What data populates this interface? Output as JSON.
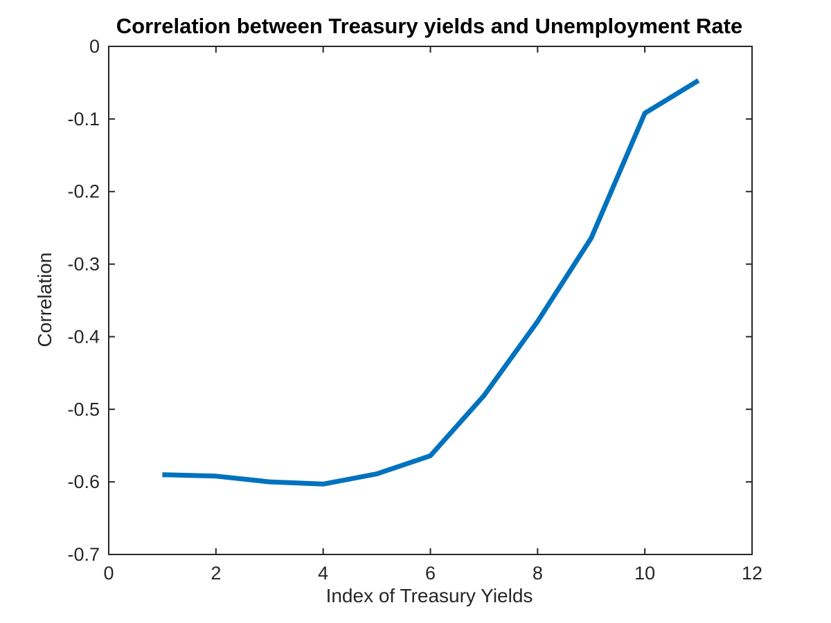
{
  "chart_data": {
    "type": "line",
    "title": "Correlation between Treasury yields and Unemployment Rate",
    "xlabel": "Index of Treasury Yields",
    "ylabel": "Correlation",
    "xlim": [
      0,
      12
    ],
    "ylim": [
      -0.7,
      0
    ],
    "xticks": [
      0,
      2,
      4,
      6,
      8,
      10,
      12
    ],
    "xtick_labels": [
      "0",
      "2",
      "4",
      "6",
      "8",
      "10",
      "12"
    ],
    "yticks": [
      0,
      -0.1,
      -0.2,
      -0.3,
      -0.4,
      -0.5,
      -0.6,
      -0.7
    ],
    "ytick_labels": [
      "0",
      "-0.1",
      "-0.2",
      "-0.3",
      "-0.4",
      "-0.5",
      "-0.6",
      "-0.7"
    ],
    "grid": false,
    "series": [
      {
        "color": "#0072BD",
        "x": [
          1,
          2,
          3,
          4,
          5,
          6,
          7,
          8,
          9,
          10,
          11
        ],
        "y": [
          -0.59,
          -0.592,
          -0.6,
          -0.603,
          -0.589,
          -0.564,
          -0.481,
          -0.379,
          -0.264,
          -0.092,
          -0.047
        ]
      }
    ]
  }
}
